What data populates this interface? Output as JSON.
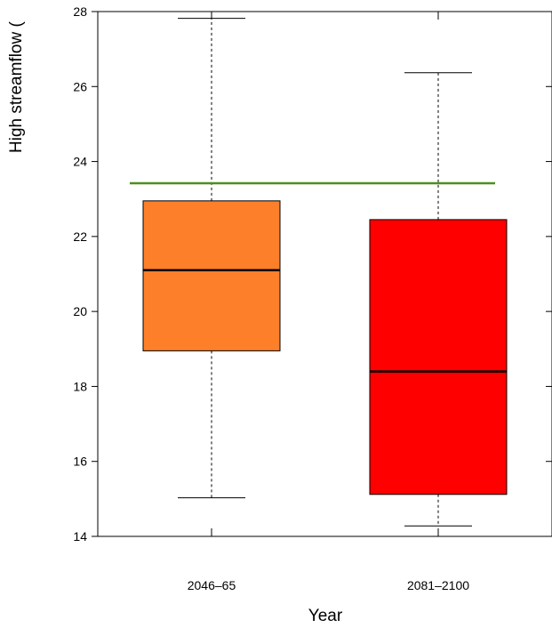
{
  "chart_data": {
    "type": "boxplot",
    "xlabel": "Year",
    "ylabel": "High streamflow (",
    "ylim": [
      14,
      28
    ],
    "yticks": [
      14,
      16,
      18,
      20,
      22,
      24,
      26,
      28
    ],
    "categories": [
      "2046–65",
      "2081–2100"
    ],
    "boxes": [
      {
        "category": "2046–65",
        "whisker_low": 15.03,
        "q1": 18.95,
        "median": 21.1,
        "q3": 22.95,
        "whisker_high": 27.82,
        "color": "#fe7f2a"
      },
      {
        "category": "2081–2100",
        "whisker_low": 14.28,
        "q1": 15.12,
        "median": 18.4,
        "q3": 22.45,
        "whisker_high": 26.37,
        "color": "#ff0000"
      }
    ],
    "reference_line": {
      "value": 23.42,
      "color": "#4e8f1c"
    },
    "grid": false
  }
}
